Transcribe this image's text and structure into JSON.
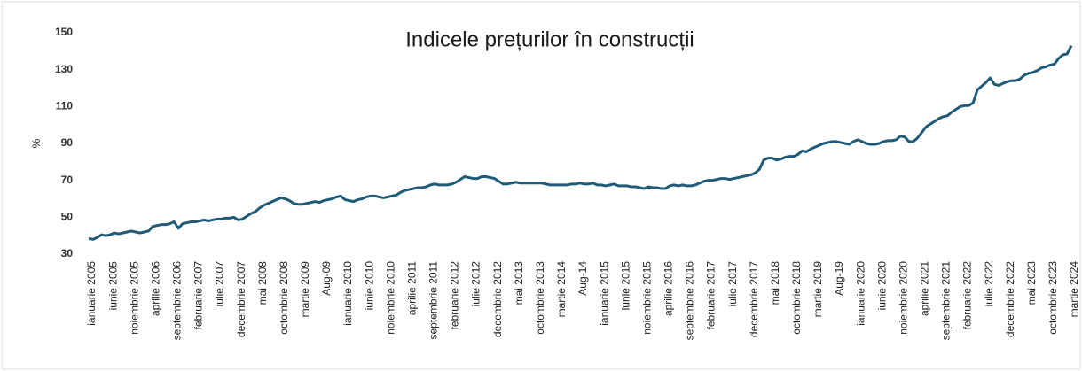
{
  "chart_data": {
    "type": "line",
    "title": "Indicele prețurilor în construcții",
    "y_label": "%",
    "color": "#1f5a78",
    "ylim": [
      30,
      150
    ],
    "yticks": [
      30,
      50,
      70,
      90,
      110,
      130,
      150
    ],
    "grid": false,
    "categories": [
      "ianuarie 2005",
      null,
      null,
      null,
      null,
      "iunie 2005",
      null,
      null,
      null,
      null,
      "noiembrie 2005",
      null,
      null,
      null,
      null,
      "aprilie 2006",
      null,
      null,
      null,
      null,
      "septembrie 2006",
      null,
      null,
      null,
      null,
      "februarie 2007",
      null,
      null,
      null,
      null,
      "iulie 2007",
      null,
      null,
      null,
      null,
      "decembrie 2007",
      null,
      null,
      null,
      null,
      "mai 2008",
      null,
      null,
      null,
      null,
      "octombrie 2008",
      null,
      null,
      null,
      null,
      "martie 2009",
      null,
      null,
      null,
      null,
      "Aug-09",
      null,
      null,
      null,
      null,
      "ianuarie 2010",
      null,
      null,
      null,
      null,
      "iunie 2010",
      null,
      null,
      null,
      null,
      "noiembrie 2010",
      null,
      null,
      null,
      null,
      "aprilie 2011",
      null,
      null,
      null,
      null,
      "septembrie 2011",
      null,
      null,
      null,
      null,
      "februarie 2012",
      null,
      null,
      null,
      null,
      "iulie 2012",
      null,
      null,
      null,
      null,
      "decembrie 2012",
      null,
      null,
      null,
      null,
      "mai 2013",
      null,
      null,
      null,
      null,
      "octombrie 2013",
      null,
      null,
      null,
      null,
      "martie 2014",
      null,
      null,
      null,
      null,
      "Aug-14",
      null,
      null,
      null,
      null,
      "ianuarie 2015",
      null,
      null,
      null,
      null,
      "iunie 2015",
      null,
      null,
      null,
      null,
      "noiembrie 2015",
      null,
      null,
      null,
      null,
      "aprilie 2016",
      null,
      null,
      null,
      null,
      "septembrie 2016",
      null,
      null,
      null,
      null,
      "februarie 2017",
      null,
      null,
      null,
      null,
      "iulie 2017",
      null,
      null,
      null,
      null,
      "decembrie 2017",
      null,
      null,
      null,
      null,
      "mai 2018",
      null,
      null,
      null,
      null,
      "octombrie 2018",
      null,
      null,
      null,
      null,
      "martie 2019",
      null,
      null,
      null,
      null,
      "Aug-19",
      null,
      null,
      null,
      null,
      "ianuarie 2020",
      null,
      null,
      null,
      null,
      "iunie 2020",
      null,
      null,
      null,
      null,
      "noiembrie 2020",
      null,
      null,
      null,
      null,
      "aprilie 2021",
      null,
      null,
      null,
      null,
      "septembrie 2021",
      null,
      null,
      null,
      null,
      "februarie 2022",
      null,
      null,
      null,
      null,
      "iulie 2022",
      null,
      null,
      null,
      null,
      "decembrie 2022",
      null,
      null,
      null,
      null,
      "mai 2023",
      null,
      null,
      null,
      null,
      "octombrie 2023",
      null,
      null,
      null,
      null,
      "martie 2024"
    ],
    "values": [
      38.5,
      38,
      39,
      40.5,
      40,
      40.5,
      41.5,
      41,
      41.5,
      42,
      42.5,
      42,
      41.5,
      42,
      42.5,
      45,
      45.5,
      46,
      46,
      46.5,
      47.5,
      44,
      46.5,
      47,
      47.5,
      47.5,
      48,
      48.5,
      48,
      48.5,
      49,
      49,
      49.5,
      49.5,
      50,
      48.5,
      49,
      50.5,
      52,
      53,
      55,
      56.5,
      57.5,
      58.5,
      59.5,
      60.5,
      60,
      59,
      57.5,
      57,
      57,
      57.5,
      58,
      58.5,
      58,
      59,
      59.5,
      60,
      61,
      61.5,
      59.5,
      59,
      58.5,
      59.5,
      60,
      61,
      61.5,
      61.5,
      61,
      60.5,
      61,
      61.5,
      62,
      63.5,
      64.5,
      65,
      65.5,
      66,
      66,
      66.5,
      67.5,
      68,
      67.5,
      67.5,
      67.5,
      68,
      69,
      70.5,
      72,
      71.5,
      71,
      71,
      72,
      72,
      71.5,
      71,
      69.5,
      68,
      68,
      68.5,
      69,
      68.5,
      68.5,
      68.5,
      68.5,
      68.5,
      68.5,
      68,
      67.5,
      67.5,
      67.5,
      67.5,
      67.5,
      68,
      68,
      68.5,
      68,
      68,
      68.5,
      67.5,
      67.5,
      67,
      67.5,
      68,
      67,
      67,
      67,
      66.5,
      66.5,
      66,
      65.5,
      66.5,
      66,
      66,
      65.5,
      65.5,
      67,
      67.5,
      67,
      67.5,
      67,
      67,
      67.5,
      68.5,
      69.5,
      70,
      70,
      70.5,
      71,
      71,
      70.5,
      71,
      71.5,
      72,
      72.5,
      73,
      74,
      76,
      81,
      82,
      82,
      81,
      81.5,
      82.5,
      83,
      83,
      84,
      86,
      85.5,
      87,
      88,
      89,
      90,
      90.5,
      91,
      91,
      90.5,
      90,
      89.5,
      91,
      92,
      91,
      90,
      89.5,
      89.5,
      90,
      91,
      91.5,
      91.5,
      92,
      94,
      93.5,
      91,
      91,
      93,
      96,
      99,
      100.5,
      102,
      103.5,
      104.5,
      105,
      107,
      108.5,
      110,
      110.5,
      110.5,
      112,
      119,
      121,
      123,
      125.5,
      122,
      121.5,
      122.5,
      123.5,
      124,
      124,
      125,
      127,
      128,
      128.5,
      129.5,
      131,
      131.5,
      132.5,
      133,
      136,
      138,
      138.5,
      143
    ]
  }
}
